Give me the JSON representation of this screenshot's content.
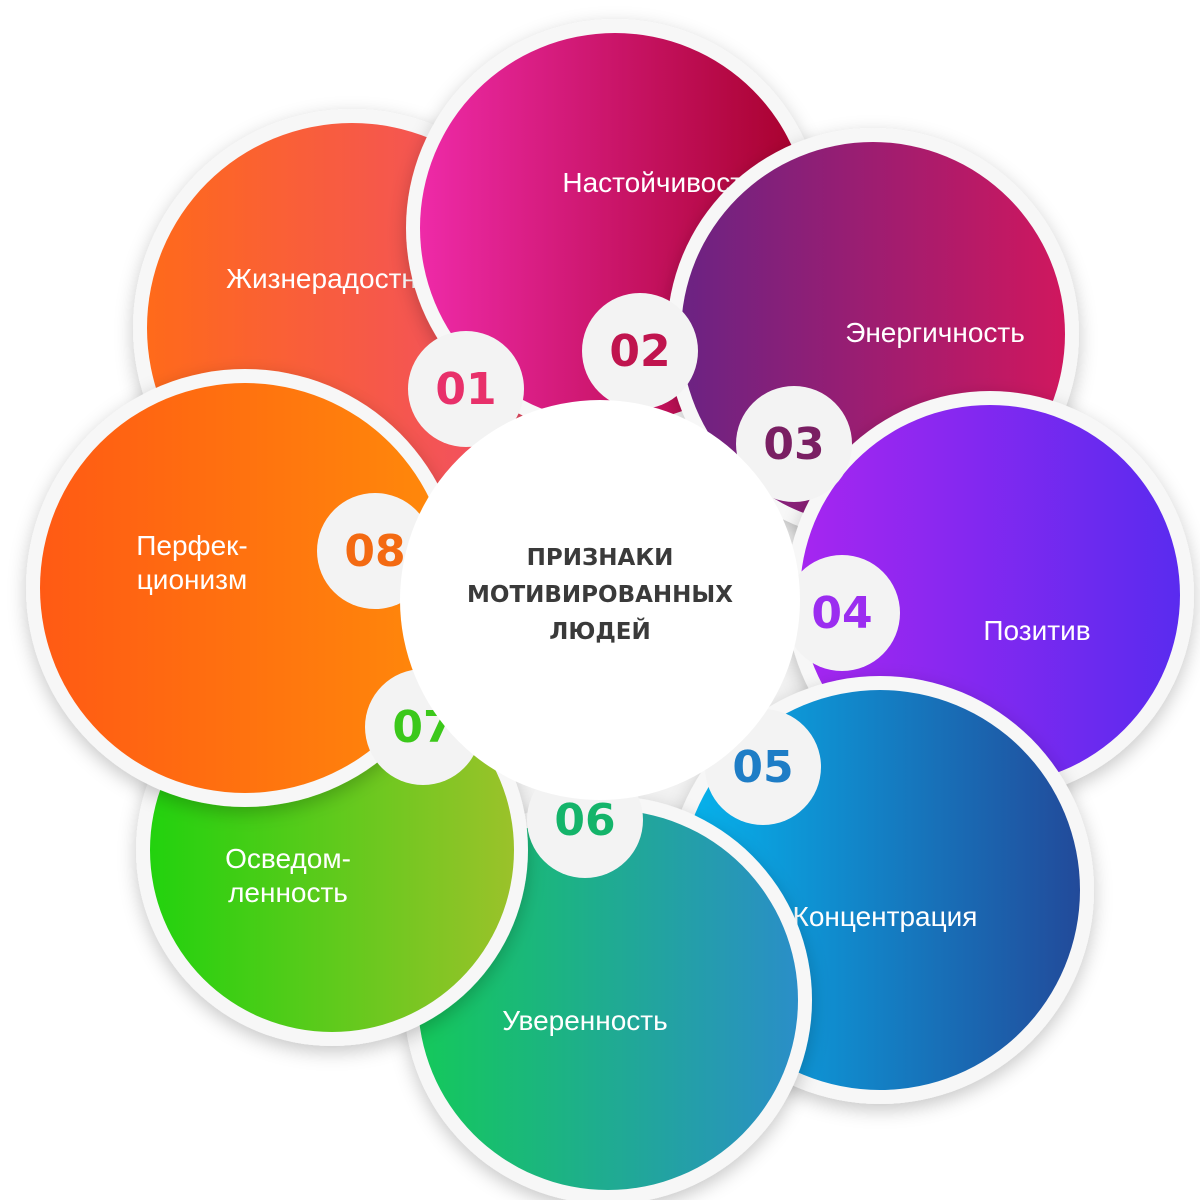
{
  "center": {
    "lines": [
      "ПРИЗНАКИ",
      "МОТИВИРОВАННЫХ",
      "ЛЮДЕЙ"
    ]
  },
  "items": [
    {
      "number": "01",
      "label": [
        "Жизнерадостность"
      ],
      "color_start": "#FF6A1A",
      "color_end": "#EF4B6E",
      "number_color": "#E8306A"
    },
    {
      "number": "02",
      "label": [
        "Настойчивость"
      ],
      "color_start": "#EE2AA8",
      "color_end": "#A6002A",
      "number_color": "#C0144E"
    },
    {
      "number": "03",
      "label": [
        "Энергичность"
      ],
      "color_start": "#6B2383",
      "color_end": "#D0175E",
      "number_color": "#7A1F63"
    },
    {
      "number": "04",
      "label": [
        "Позитив"
      ],
      "color_start": "#A626F0",
      "color_end": "#5A2BEF",
      "number_color": "#9B2DF0"
    },
    {
      "number": "05",
      "label": [
        "Концентрация"
      ],
      "color_start": "#05B5EE",
      "color_end": "#224A9A",
      "number_color": "#1E7DC6"
    },
    {
      "number": "06",
      "label": [
        "Уверенность"
      ],
      "color_start": "#14C95A",
      "color_end": "#2A8EC8",
      "number_color": "#14B46A"
    },
    {
      "number": "07",
      "label": [
        "Осведом-",
        "ленность"
      ],
      "color_start": "#22D20E",
      "color_end": "#9BC22A",
      "number_color": "#3BC81A"
    },
    {
      "number": "08",
      "label": [
        "Перфек-",
        "ционизм"
      ],
      "color_start": "#FF5A14",
      "color_end": "#FF8A0A",
      "number_color": "#F36A12"
    }
  ]
}
